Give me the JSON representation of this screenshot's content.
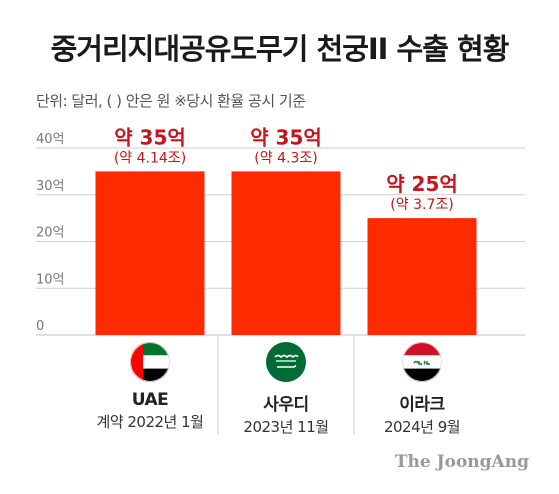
{
  "title": "중거리지대공유도무기 천궁II 수출 현황",
  "unit_note": "단위: 달러, ( ) 안은 원  ※당시 환율 공시 기준",
  "source": "The JoongAng",
  "colors": {
    "bar": "#ff2a00",
    "label": "#c4161c",
    "grid": "#cfcfcf"
  },
  "chart_data": {
    "type": "bar",
    "title": "중거리지대공유도무기 천궁II 수출 현황",
    "xlabel": "",
    "ylabel": "",
    "ylim": [
      0,
      40
    ],
    "yticks": [
      "0",
      "10억",
      "20억",
      "30억",
      "40억"
    ],
    "grid": true,
    "categories": [
      "UAE",
      "사우디",
      "이라크"
    ],
    "values": [
      35,
      35,
      25
    ],
    "value_labels": [
      "약 35억",
      "약 35억",
      "약 25억"
    ],
    "won_labels": [
      "(약 4.14조)",
      "(약 4.3조)",
      "(약 3.7조)"
    ],
    "dates": [
      "계약 2022년 1월",
      "2023년 11월",
      "2024년 9월"
    ]
  },
  "flags": [
    "uae-flag-icon",
    "saudi-flag-icon",
    "iraq-flag-icon"
  ]
}
